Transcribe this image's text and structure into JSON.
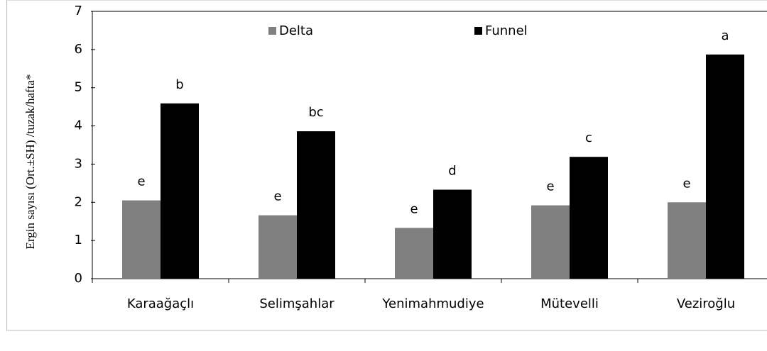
{
  "chart_data": {
    "type": "bar",
    "y_label": "Ergin sayısı (Ort.±SH) /tuzak/hafta*",
    "categories": [
      "Karaağaçlı",
      "Selimşahlar",
      "Yenimahmudiye",
      "Mütevelli",
      "Veziroğlu"
    ],
    "series": [
      {
        "name": "Delta",
        "color": "#808080",
        "values": [
          2.05,
          1.66,
          1.33,
          1.92,
          2.0
        ],
        "labels": [
          "e",
          "e",
          "e",
          "e",
          "e"
        ]
      },
      {
        "name": "Funnel",
        "color": "#000000",
        "values": [
          4.59,
          3.86,
          2.33,
          3.19,
          5.87
        ],
        "labels": [
          "b",
          "bc",
          "d",
          "c",
          "a"
        ]
      }
    ],
    "ylim": [
      0,
      7
    ],
    "yticks": [
      0,
      1,
      2,
      3,
      4,
      5,
      6,
      7
    ],
    "grid": false,
    "legend": "top"
  }
}
